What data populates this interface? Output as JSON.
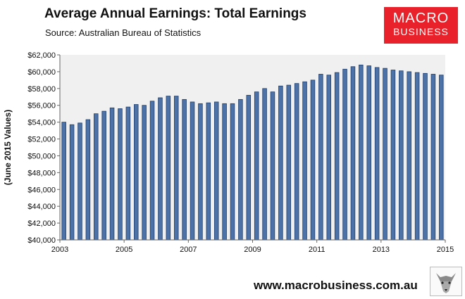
{
  "header": {
    "title": "Average Annual Earnings: Total Earnings",
    "source": "Source: Australian Bureau of Statistics"
  },
  "logo": {
    "line1": "MACRO",
    "line2": "BUSINESS",
    "color": "#e8212a"
  },
  "footer": {
    "url": "www.macrobusiness.com.au"
  },
  "chart_data": {
    "type": "bar",
    "title": "Average Annual Earnings: Total Earnings",
    "ylabel": "(June 2015 Values)",
    "xlabel": "",
    "ylim": [
      40000,
      62000
    ],
    "yticks": [
      40000,
      42000,
      44000,
      46000,
      48000,
      50000,
      52000,
      54000,
      56000,
      58000,
      60000,
      62000
    ],
    "ytick_labels": [
      "$40,000",
      "$42,000",
      "$44,000",
      "$46,000",
      "$48,000",
      "$50,000",
      "$52,000",
      "$54,000",
      "$56,000",
      "$58,000",
      "$60,000",
      "$62,000"
    ],
    "xticks": [
      2003,
      2005,
      2007,
      2009,
      2011,
      2013,
      2015
    ],
    "xtick_labels": [
      "2003",
      "2005",
      "2007",
      "2009",
      "2011",
      "2013",
      "2015"
    ],
    "x_range": [
      2003,
      2015
    ],
    "x": [
      2003.25,
      2003.5,
      2003.75,
      2004.0,
      2004.25,
      2004.5,
      2004.75,
      2005.0,
      2005.25,
      2005.5,
      2005.75,
      2006.0,
      2006.25,
      2006.5,
      2006.75,
      2007.0,
      2007.25,
      2007.5,
      2007.75,
      2008.0,
      2008.25,
      2008.5,
      2008.75,
      2009.0,
      2009.25,
      2009.5,
      2009.75,
      2010.0,
      2010.25,
      2010.5,
      2010.75,
      2011.0,
      2011.25,
      2011.5,
      2011.75,
      2012.0,
      2012.25,
      2012.5,
      2012.75,
      2013.0,
      2013.25,
      2013.5,
      2013.75,
      2014.0,
      2014.25,
      2014.5,
      2014.75,
      2015.0
    ],
    "values": [
      54000,
      53700,
      53900,
      54300,
      55000,
      55300,
      55700,
      55600,
      55800,
      56100,
      56000,
      56500,
      56900,
      57100,
      57100,
      56700,
      56400,
      56200,
      56300,
      56400,
      56200,
      56200,
      56700,
      57200,
      57600,
      58000,
      57600,
      58300,
      58400,
      58600,
      58800,
      59000,
      59700,
      59600,
      59900,
      60300,
      60600,
      60800,
      60700,
      60500,
      60400,
      60200,
      60100,
      60000,
      59900,
      59800,
      59700,
      59600
    ],
    "grid": false,
    "legend": "none",
    "colors": {
      "bar": "#4c72a8",
      "bar_edge": "#1f3f6e",
      "plot_bg": "#f0f0f0"
    }
  }
}
